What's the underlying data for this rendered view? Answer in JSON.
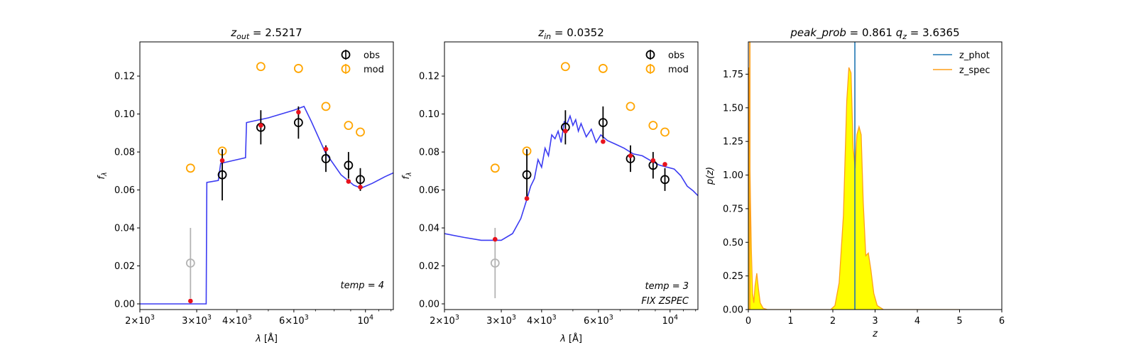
{
  "chart_data": [
    {
      "type": "scatter",
      "title": "z_out = 2.5217",
      "title_parts": {
        "var": "z",
        "sub": "out",
        "eq": "= 2.5217"
      },
      "xlabel": "λ [Å]",
      "ylabel": "f_λ",
      "xscale": "log",
      "xlim": [
        2000,
        12200
      ],
      "ylim": [
        -0.003,
        0.138
      ],
      "xticks": [
        {
          "value": 2000,
          "mant": "2×10",
          "exp": "3"
        },
        {
          "value": 3000,
          "mant": "3×10",
          "exp": "3"
        },
        {
          "value": 4000,
          "mant": "4×10",
          "exp": "3"
        },
        {
          "value": 6000,
          "mant": "6×10",
          "exp": "3"
        },
        {
          "value": 10000,
          "mant": "10",
          "exp": "4"
        }
      ],
      "yticks": [
        "0.00",
        "0.02",
        "0.04",
        "0.06",
        "0.08",
        "0.10",
        "0.12"
      ],
      "legend": {
        "position": "top-right",
        "entries": [
          "obs",
          "mod"
        ]
      },
      "annotations": [
        "temp = 4"
      ],
      "obs": [
        {
          "x": 2870,
          "y": 0.0215,
          "err": 0.0185,
          "faint": true
        },
        {
          "x": 3600,
          "y": 0.068,
          "err": 0.0135
        },
        {
          "x": 4740,
          "y": 0.093,
          "err": 0.009
        },
        {
          "x": 6200,
          "y": 0.0955,
          "err": 0.0085
        },
        {
          "x": 7540,
          "y": 0.0765,
          "err": 0.007
        },
        {
          "x": 8860,
          "y": 0.073,
          "err": 0.007
        },
        {
          "x": 9640,
          "y": 0.0655,
          "err": 0.006
        }
      ],
      "mod": [
        {
          "x": 2870,
          "y": 0.0715
        },
        {
          "x": 3600,
          "y": 0.0805
        },
        {
          "x": 4740,
          "y": 0.125
        },
        {
          "x": 6200,
          "y": 0.124
        },
        {
          "x": 7540,
          "y": 0.104
        },
        {
          "x": 8860,
          "y": 0.094
        },
        {
          "x": 9640,
          "y": 0.0905
        }
      ],
      "model_points": [
        {
          "x": 2870,
          "y": 0.0015
        },
        {
          "x": 3600,
          "y": 0.0755
        },
        {
          "x": 4740,
          "y": 0.094
        },
        {
          "x": 6200,
          "y": 0.101
        },
        {
          "x": 7540,
          "y": 0.0815
        },
        {
          "x": 8860,
          "y": 0.0645
        },
        {
          "x": 9640,
          "y": 0.0615
        }
      ],
      "sed": [
        [
          2000,
          0.0
        ],
        [
          3210,
          0.0
        ],
        [
          3225,
          0.064
        ],
        [
          3500,
          0.065
        ],
        [
          3560,
          0.074
        ],
        [
          4250,
          0.077
        ],
        [
          4280,
          0.0955
        ],
        [
          5000,
          0.098
        ],
        [
          6000,
          0.102
        ],
        [
          6450,
          0.104
        ],
        [
          6800,
          0.096
        ],
        [
          7500,
          0.08
        ],
        [
          8400,
          0.068
        ],
        [
          9200,
          0.0625
        ],
        [
          9700,
          0.061
        ],
        [
          10500,
          0.0635
        ],
        [
          11500,
          0.067
        ],
        [
          12200,
          0.069
        ]
      ]
    },
    {
      "type": "scatter",
      "title": "z_in = 0.0352",
      "title_parts": {
        "var": "z",
        "sub": "in",
        "eq": "= 0.0352"
      },
      "xlabel": "λ [Å]",
      "ylabel": "f_λ",
      "xscale": "log",
      "xlim": [
        2000,
        12200
      ],
      "ylim": [
        -0.003,
        0.138
      ],
      "xticks": [
        {
          "value": 2000,
          "mant": "2×10",
          "exp": "3"
        },
        {
          "value": 3000,
          "mant": "3×10",
          "exp": "3"
        },
        {
          "value": 4000,
          "mant": "4×10",
          "exp": "3"
        },
        {
          "value": 6000,
          "mant": "6×10",
          "exp": "3"
        },
        {
          "value": 10000,
          "mant": "10",
          "exp": "4"
        }
      ],
      "yticks": [
        "0.00",
        "0.02",
        "0.04",
        "0.06",
        "0.08",
        "0.10",
        "0.12"
      ],
      "legend": {
        "position": "top-right",
        "entries": [
          "obs",
          "mod"
        ]
      },
      "annotations": [
        "temp = 3",
        "FIX ZSPEC"
      ],
      "obs": [
        {
          "x": 2870,
          "y": 0.0215,
          "err": 0.0185,
          "faint": true
        },
        {
          "x": 3600,
          "y": 0.068,
          "err": 0.0135
        },
        {
          "x": 4740,
          "y": 0.093,
          "err": 0.009
        },
        {
          "x": 6200,
          "y": 0.0955,
          "err": 0.0085
        },
        {
          "x": 7540,
          "y": 0.0765,
          "err": 0.007
        },
        {
          "x": 8860,
          "y": 0.073,
          "err": 0.007
        },
        {
          "x": 9640,
          "y": 0.0655,
          "err": 0.006
        }
      ],
      "mod": [
        {
          "x": 2870,
          "y": 0.0715
        },
        {
          "x": 3600,
          "y": 0.0805
        },
        {
          "x": 4740,
          "y": 0.125
        },
        {
          "x": 6200,
          "y": 0.124
        },
        {
          "x": 7540,
          "y": 0.104
        },
        {
          "x": 8860,
          "y": 0.094
        },
        {
          "x": 9640,
          "y": 0.0905
        }
      ],
      "model_points": [
        {
          "x": 2870,
          "y": 0.034
        },
        {
          "x": 3600,
          "y": 0.0555
        },
        {
          "x": 4740,
          "y": 0.091
        },
        {
          "x": 6200,
          "y": 0.0855
        },
        {
          "x": 7540,
          "y": 0.078
        },
        {
          "x": 8860,
          "y": 0.0755
        },
        {
          "x": 9640,
          "y": 0.0735
        }
      ],
      "sed": [
        [
          2000,
          0.037
        ],
        [
          2300,
          0.035
        ],
        [
          2600,
          0.0335
        ],
        [
          3000,
          0.0335
        ],
        [
          3250,
          0.037
        ],
        [
          3450,
          0.045
        ],
        [
          3600,
          0.055
        ],
        [
          3700,
          0.062
        ],
        [
          3800,
          0.066
        ],
        [
          3900,
          0.076
        ],
        [
          4000,
          0.072
        ],
        [
          4100,
          0.082
        ],
        [
          4200,
          0.078
        ],
        [
          4300,
          0.089
        ],
        [
          4400,
          0.087
        ],
        [
          4500,
          0.091
        ],
        [
          4600,
          0.085
        ],
        [
          4700,
          0.096
        ],
        [
          4800,
          0.095
        ],
        [
          4900,
          0.099
        ],
        [
          5000,
          0.094
        ],
        [
          5100,
          0.097
        ],
        [
          5200,
          0.091
        ],
        [
          5300,
          0.095
        ],
        [
          5500,
          0.088
        ],
        [
          5700,
          0.092
        ],
        [
          5900,
          0.085
        ],
        [
          6100,
          0.089
        ],
        [
          6400,
          0.086
        ],
        [
          6800,
          0.084
        ],
        [
          7200,
          0.082
        ],
        [
          7700,
          0.079
        ],
        [
          8200,
          0.078
        ],
        [
          8800,
          0.075
        ],
        [
          9300,
          0.073
        ],
        [
          9800,
          0.072
        ],
        [
          10300,
          0.071
        ],
        [
          10800,
          0.0675
        ],
        [
          11300,
          0.062
        ],
        [
          11800,
          0.0595
        ],
        [
          12200,
          0.057
        ]
      ]
    },
    {
      "type": "area",
      "title": "peak_prob = 0.861     q_z = 3.6365",
      "title_parts": {
        "a": "peak_prob",
        "a_eq": "= 0.861",
        "b_var": "q",
        "b_sub": "z",
        "b_eq": "= 3.6365"
      },
      "xlabel": "z",
      "ylabel": "p(z)",
      "xlim": [
        0,
        6
      ],
      "ylim": [
        0,
        1.99
      ],
      "xticks": [
        "0",
        "1",
        "2",
        "3",
        "4",
        "5",
        "6"
      ],
      "yticks": [
        "0.00",
        "0.25",
        "0.50",
        "0.75",
        "1.00",
        "1.25",
        "1.50",
        "1.75"
      ],
      "legend": {
        "position": "top-right",
        "entries": [
          "z_phot",
          "z_spec"
        ]
      },
      "z_phot": 2.5217,
      "z_spec": 0.0352,
      "pz": [
        [
          0.0,
          0.0
        ],
        [
          0.01,
          1.8
        ],
        [
          0.03,
          1.25
        ],
        [
          0.05,
          0.8
        ],
        [
          0.07,
          0.45
        ],
        [
          0.1,
          0.12
        ],
        [
          0.13,
          0.05
        ],
        [
          0.16,
          0.18
        ],
        [
          0.2,
          0.27
        ],
        [
          0.24,
          0.15
        ],
        [
          0.28,
          0.05
        ],
        [
          0.35,
          0.01
        ],
        [
          0.45,
          0.0
        ],
        [
          1.95,
          0.0
        ],
        [
          2.05,
          0.03
        ],
        [
          2.15,
          0.2
        ],
        [
          2.25,
          0.7
        ],
        [
          2.33,
          1.55
        ],
        [
          2.38,
          1.8
        ],
        [
          2.43,
          1.76
        ],
        [
          2.48,
          1.2
        ],
        [
          2.53,
          1.05
        ],
        [
          2.57,
          1.3
        ],
        [
          2.62,
          1.36
        ],
        [
          2.67,
          1.3
        ],
        [
          2.72,
          0.8
        ],
        [
          2.78,
          0.4
        ],
        [
          2.84,
          0.42
        ],
        [
          2.9,
          0.3
        ],
        [
          2.97,
          0.12
        ],
        [
          3.05,
          0.03
        ],
        [
          3.2,
          0.0
        ],
        [
          5.0,
          0.0
        ]
      ],
      "colors": {
        "phot": "#1f77b4",
        "spec": "#ff9f1a",
        "fill": "#ffff00"
      }
    }
  ],
  "colors": {
    "obs": "#000000",
    "obs_faint": "#b4b4b4",
    "mod": "#ffa500",
    "model_point": "#e8121c",
    "sed": "#3b3bf2"
  }
}
